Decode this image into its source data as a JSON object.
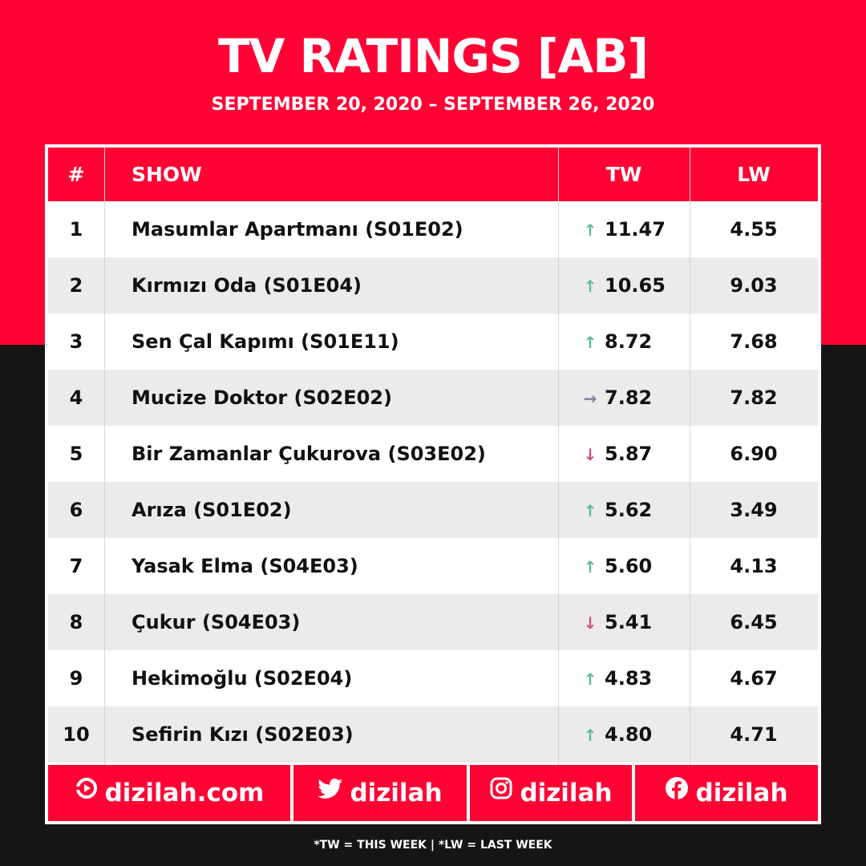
{
  "header": {
    "title": "TV RATINGS [AB]",
    "subtitle": "SEPTEMBER 20, 2020 – SEPTEMBER 26, 2020"
  },
  "table": {
    "columns": {
      "rank": "#",
      "show": "SHOW",
      "tw": "TW",
      "lw": "LW"
    },
    "rows": [
      {
        "rank": "1",
        "show": "Masumlar Apartmanı (S01E02)",
        "trend": "up",
        "tw": "11.47",
        "lw": "4.55"
      },
      {
        "rank": "2",
        "show": "Kırmızı Oda (S01E04)",
        "trend": "up",
        "tw": "10.65",
        "lw": "9.03"
      },
      {
        "rank": "3",
        "show": "Sen Çal Kapımı (S01E11)",
        "trend": "up",
        "tw": "8.72",
        "lw": "7.68"
      },
      {
        "rank": "4",
        "show": "Mucize Doktor (S02E02)",
        "trend": "same",
        "tw": "7.82",
        "lw": "7.82"
      },
      {
        "rank": "5",
        "show": "Bir Zamanlar Çukurova (S03E02)",
        "trend": "down",
        "tw": "5.87",
        "lw": "6.90"
      },
      {
        "rank": "6",
        "show": "Arıza (S01E02)",
        "trend": "up",
        "tw": "5.62",
        "lw": "3.49"
      },
      {
        "rank": "7",
        "show": "Yasak Elma (S04E03)",
        "trend": "up",
        "tw": "5.60",
        "lw": "4.13"
      },
      {
        "rank": "8",
        "show": "Çukur (S04E03)",
        "trend": "down",
        "tw": "5.41",
        "lw": "6.45"
      },
      {
        "rank": "9",
        "show": "Hekimoğlu (S02E04)",
        "trend": "up",
        "tw": "4.83",
        "lw": "4.67"
      },
      {
        "rank": "10",
        "show": "Sefirin Kızı (S02E03)",
        "trend": "up",
        "tw": "4.80",
        "lw": "4.71"
      }
    ]
  },
  "trend_icons": {
    "up": {
      "glyph": "↑",
      "color": "#5fb79a",
      "icon": "arrow-up-icon"
    },
    "same": {
      "glyph": "→",
      "color": "#7c7f97",
      "icon": "arrow-right-icon"
    },
    "down": {
      "glyph": "↓",
      "color": "#d0507a",
      "icon": "arrow-down-icon"
    }
  },
  "footer": {
    "website": "dizilah.com",
    "twitter": "dizilah",
    "instagram": "dizilah",
    "facebook": "dizilah"
  },
  "note": "*TW = THIS WEEK | *LW = LAST WEEK",
  "colors": {
    "brand_red": "#ff0335",
    "dark_bg": "#151515",
    "row_alt": "#ebebeb"
  }
}
